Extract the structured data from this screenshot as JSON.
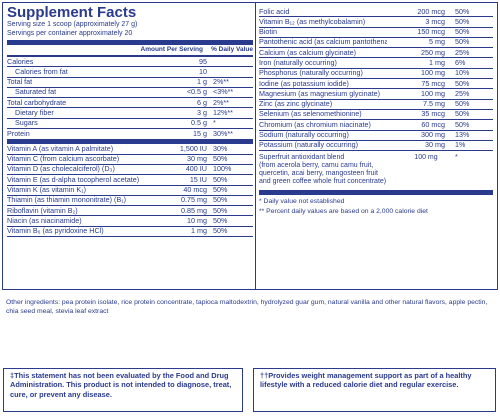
{
  "title": "Supplement Facts",
  "serving_size": "Serving size  1 scoop (approximately 27 g)",
  "servings_per_container": "Servings per container  approximately 20",
  "header": {
    "amount": "Amount Per Serving",
    "dv": "% Daily Value"
  },
  "left_rows": [
    {
      "name": "Calories",
      "amount": "95",
      "dv": "",
      "indent": false
    },
    {
      "name": "Calories from fat",
      "amount": "10",
      "dv": "",
      "indent": true
    },
    {
      "name": "Total fat",
      "amount": "1 g",
      "dv": "2%**",
      "indent": false
    },
    {
      "name": "Saturated fat",
      "amount": "<0.5 g",
      "dv": "<3%**",
      "indent": true
    },
    {
      "name": "Total carbohydrate",
      "amount": "6 g",
      "dv": "2%**",
      "indent": false
    },
    {
      "name": "Dietary fiber",
      "amount": "3 g",
      "dv": "12%**",
      "indent": true
    },
    {
      "name": "Sugars",
      "amount": "0.5 g",
      "dv": "*",
      "indent": true
    },
    {
      "name": "Protein",
      "amount": "15 g",
      "dv": "30%**",
      "indent": false
    }
  ],
  "vitamin_rows": [
    {
      "name": "Vitamin A (as vitamin A palmitate)",
      "amount": "1,500 IU",
      "dv": "30%"
    },
    {
      "name": "Vitamin C (from calcium ascorbate)",
      "amount": "30 mg",
      "dv": "50%"
    },
    {
      "name": "Vitamin D (as cholecalciferol) (D₃)",
      "amount": "400 IU",
      "dv": "100%"
    },
    {
      "name": "Vitamin E (as d-alpha tocopherol acetate)",
      "amount": "15 IU",
      "dv": "50%"
    },
    {
      "name": "Vitamin K (as vitamin K₁)",
      "amount": "40 mcg",
      "dv": "50%"
    },
    {
      "name": "Thiamin (as thiamin mononitrate) (B₁)",
      "amount": "0.75 mg",
      "dv": "50%"
    },
    {
      "name": "Riboflavin (vitamin B₂)",
      "amount": "0.85 mg",
      "dv": "50%"
    },
    {
      "name": "Niacin (as niacinamide)",
      "amount": "10 mg",
      "dv": "50%"
    },
    {
      "name": "Vitamin B₆ (as pyridoxine HCl)",
      "amount": "1 mg",
      "dv": "50%"
    }
  ],
  "right_rows": [
    {
      "name": "Folic acid",
      "amount": "200 mcg",
      "dv": "50%"
    },
    {
      "name": "Vitamin B₁₂ (as methylcobalamin)",
      "amount": "3 mcg",
      "dv": "50%"
    },
    {
      "name": "Biotin",
      "amount": "150 mcg",
      "dv": "50%"
    },
    {
      "name": "Pantothenic acid (as calcium pantothenate) (B₅)",
      "amount": "5 mg",
      "dv": "50%"
    },
    {
      "name": "Calcium (as calcium glycinate)",
      "amount": "250 mg",
      "dv": "25%"
    },
    {
      "name": "Iron (naturally occurring)",
      "amount": "1 mg",
      "dv": "6%"
    },
    {
      "name": "Phosphorus (naturally occurring)",
      "amount": "100 mg",
      "dv": "10%"
    },
    {
      "name": "Iodine (as potassium iodide)",
      "amount": "75 mcg",
      "dv": "50%"
    },
    {
      "name": "Magnesium (as magnesium glycinate)",
      "amount": "100 mg",
      "dv": "25%"
    },
    {
      "name": "Zinc (as zinc glycinate)",
      "amount": "7.5 mg",
      "dv": "50%"
    },
    {
      "name": "Selenium (as selenomethionine)",
      "amount": "35 mcg",
      "dv": "50%"
    },
    {
      "name": "Chromium (as chromium niacinate)",
      "amount": "60 mcg",
      "dv": "50%"
    },
    {
      "name": "Sodium (naturally occurring)",
      "amount": "300 mg",
      "dv": "13%"
    },
    {
      "name": "Potassium (naturally occurring)",
      "amount": "30 mg",
      "dv": "1%"
    }
  ],
  "blend": {
    "name": "Superfruit antioxidant blend\n(from acerola berry, camu camu fruit,\nquercetin, acai berry, mangosteen fruit\nand green coffee whole fruit concentrate)",
    "amount": "100 mg",
    "dv": "*"
  },
  "footnotes": [
    "* Daily value not established",
    "** Percent daily values are based on a 2,000 calorie diet"
  ],
  "other_ingredients": "Other ingredients: pea protein isolate, rice protein concentrate, tapioca maltodextrin, hydrolyzed guar gum, natural vanilla and other natural flavors, apple pectin, chia seed meal, stevia leaf extract",
  "disclaimer_left": "‡This statement has not been evaluated by the Food and Drug Administration. This product is not intended to diagnose, treat, cure, or prevent any disease.",
  "disclaimer_right": "††Provides weight management support as part of a healthy lifestyle with a reduced calorie diet and regular exercise.",
  "colors": {
    "ink": "#2a3a8c",
    "background": "#ffffff"
  }
}
